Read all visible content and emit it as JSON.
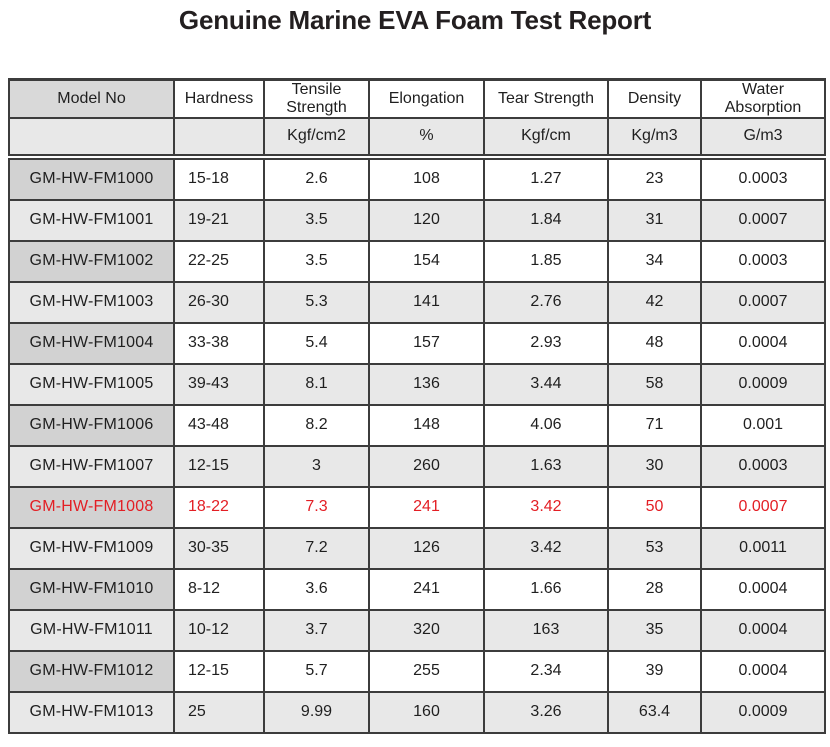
{
  "title": "Genuine Marine EVA Foam Test Report",
  "colors": {
    "border": "#3c3c3c",
    "text": "#1f1f1f",
    "gray_row_bg": "#e8e8e8",
    "model_cell_bg": "#d2d2d2",
    "header_model_bg": "#d9d9d9",
    "highlight_text": "#e31e24"
  },
  "chart_data": {
    "type": "table",
    "title": "Genuine Marine EVA Foam Test Report",
    "columns": [
      {
        "label": "Model No",
        "unit": ""
      },
      {
        "label": "Hardness",
        "unit": ""
      },
      {
        "label": "Tensile Strength",
        "unit": "Kgf/cm2"
      },
      {
        "label": "Elongation",
        "unit": "%"
      },
      {
        "label": "Tear Strength",
        "unit": "Kgf/cm"
      },
      {
        "label": "Density",
        "unit": "Kg/m3"
      },
      {
        "label": "Water Absorption",
        "unit": "G/m3"
      }
    ],
    "rows": [
      {
        "cells": [
          "GM-HW-FM1000",
          "15-18",
          "2.6",
          "108",
          "1.27",
          "23",
          "0.0003"
        ],
        "highlight": false
      },
      {
        "cells": [
          "GM-HW-FM1001",
          "19-21",
          "3.5",
          "120",
          "1.84",
          "31",
          "0.0007"
        ],
        "highlight": false
      },
      {
        "cells": [
          "GM-HW-FM1002",
          "22-25",
          "3.5",
          "154",
          "1.85",
          "34",
          "0.0003"
        ],
        "highlight": false
      },
      {
        "cells": [
          "GM-HW-FM1003",
          "26-30",
          "5.3",
          "141",
          "2.76",
          "42",
          "0.0007"
        ],
        "highlight": false
      },
      {
        "cells": [
          "GM-HW-FM1004",
          "33-38",
          "5.4",
          "157",
          "2.93",
          "48",
          "0.0004"
        ],
        "highlight": false
      },
      {
        "cells": [
          "GM-HW-FM1005",
          "39-43",
          "8.1",
          "136",
          "3.44",
          "58",
          "0.0009"
        ],
        "highlight": false
      },
      {
        "cells": [
          "GM-HW-FM1006",
          "43-48",
          "8.2",
          "148",
          "4.06",
          "71",
          "0.001"
        ],
        "highlight": false
      },
      {
        "cells": [
          "GM-HW-FM1007",
          "12-15",
          "3",
          "260",
          "1.63",
          "30",
          "0.0003"
        ],
        "highlight": false
      },
      {
        "cells": [
          "GM-HW-FM1008",
          "18-22",
          "7.3",
          "241",
          "3.42",
          "50",
          "0.0007"
        ],
        "highlight": true
      },
      {
        "cells": [
          "GM-HW-FM1009",
          "30-35",
          "7.2",
          "126",
          "3.42",
          "53",
          "0.0011"
        ],
        "highlight": false
      },
      {
        "cells": [
          "GM-HW-FM1010",
          "8-12",
          "3.6",
          "241",
          "1.66",
          "28",
          "0.0004"
        ],
        "highlight": false
      },
      {
        "cells": [
          "GM-HW-FM1011",
          "10-12",
          "3.7",
          "320",
          "163",
          "35",
          "0.0004"
        ],
        "highlight": false
      },
      {
        "cells": [
          "GM-HW-FM1012",
          "12-15",
          "5.7",
          "255",
          "2.34",
          "39",
          "0.0004"
        ],
        "highlight": false
      },
      {
        "cells": [
          "GM-HW-FM1013",
          "25",
          "9.99",
          "160",
          "3.26",
          "63.4",
          "0.0009"
        ],
        "highlight": false
      }
    ]
  }
}
